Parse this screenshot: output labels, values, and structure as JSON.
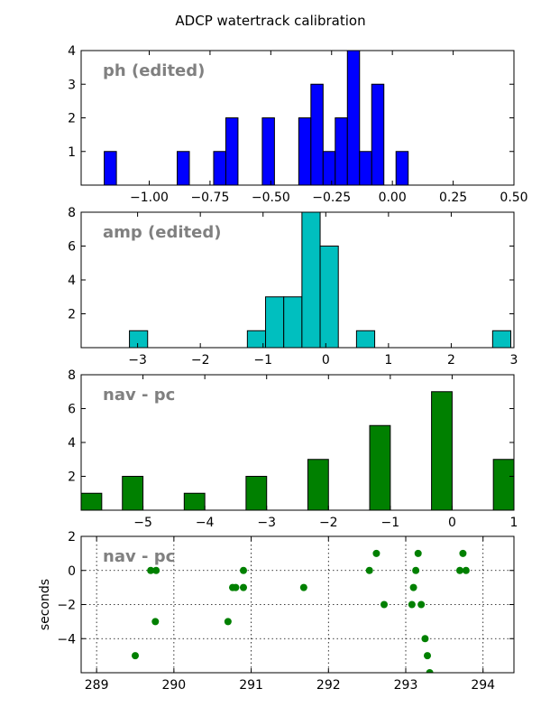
{
  "figure": {
    "title": "ADCP watertrack calibration"
  },
  "chart_data": [
    {
      "type": "bar",
      "panel_label": "ph (edited)",
      "color": "#0000ff",
      "xlim": [
        -1.28,
        0.5
      ],
      "ylim": [
        0,
        4
      ],
      "xticks": [
        "−1.00",
        "−0.75",
        "−0.50",
        "−0.25",
        "0.00",
        "0.25",
        "0.50"
      ],
      "xtick_values": [
        -1.0,
        -0.75,
        -0.5,
        -0.25,
        0.0,
        0.25,
        0.5
      ],
      "yticks": [
        "1",
        "2",
        "3",
        "4"
      ],
      "ytick_values": [
        1,
        2,
        3,
        4
      ],
      "bin_edges": [
        -1.28,
        -1.255,
        -1.23,
        -1.205,
        -1.18,
        -1.155,
        -1.13,
        -1.105,
        -1.08,
        -1.055
      ],
      "bins": [
        {
          "x0": -1.185,
          "x1": -1.135,
          "value": 1
        },
        {
          "x0": -0.885,
          "x1": -0.835,
          "value": 1
        },
        {
          "x0": -0.735,
          "x1": -0.685,
          "value": 1
        },
        {
          "x0": -0.685,
          "x1": -0.635,
          "value": 2
        },
        {
          "x0": -0.535,
          "x1": -0.485,
          "value": 2
        },
        {
          "x0": -0.385,
          "x1": -0.335,
          "value": 2
        },
        {
          "x0": -0.335,
          "x1": -0.285,
          "value": 3
        },
        {
          "x0": -0.285,
          "x1": -0.235,
          "value": 1
        },
        {
          "x0": -0.235,
          "x1": -0.185,
          "value": 2
        },
        {
          "x0": -0.185,
          "x1": -0.135,
          "value": 4
        },
        {
          "x0": -0.135,
          "x1": -0.085,
          "value": 1
        },
        {
          "x0": -0.085,
          "x1": -0.035,
          "value": 3
        },
        {
          "x0": 0.015,
          "x1": 0.065,
          "value": 1
        }
      ]
    },
    {
      "type": "bar",
      "panel_label": "amp (edited)",
      "color": "#00bfbf",
      "xlim": [
        -3.9,
        3.0
      ],
      "ylim": [
        0,
        8
      ],
      "xticks": [
        "−3",
        "−2",
        "−1",
        "0",
        "1",
        "2",
        "3"
      ],
      "xtick_values": [
        -3,
        -2,
        -1,
        0,
        1,
        2,
        3
      ],
      "yticks": [
        "2",
        "4",
        "6",
        "8"
      ],
      "ytick_values": [
        2,
        4,
        6,
        8
      ],
      "bins": [
        {
          "x0": -3.13,
          "x1": -2.84,
          "value": 1
        },
        {
          "x0": -1.25,
          "x1": -0.96,
          "value": 1
        },
        {
          "x0": -0.96,
          "x1": -0.67,
          "value": 3
        },
        {
          "x0": -0.67,
          "x1": -0.38,
          "value": 3
        },
        {
          "x0": -0.38,
          "x1": -0.09,
          "value": 8
        },
        {
          "x0": -0.09,
          "x1": 0.2,
          "value": 6
        },
        {
          "x0": 0.49,
          "x1": 0.78,
          "value": 1
        },
        {
          "x0": 2.66,
          "x1": 2.95,
          "value": 1
        }
      ]
    },
    {
      "type": "bar",
      "panel_label": "nav - pc",
      "color": "#008000",
      "xlim": [
        -6.0,
        1.0
      ],
      "ylim": [
        0,
        8
      ],
      "xticks": [
        "−5",
        "−4",
        "−3",
        "−2",
        "−1",
        "0",
        "1"
      ],
      "xtick_values": [
        -5,
        -4,
        -3,
        -2,
        -1,
        0,
        1
      ],
      "yticks": [
        "2",
        "4",
        "6",
        "8"
      ],
      "ytick_values": [
        2,
        4,
        6,
        8
      ],
      "bins": [
        {
          "x0": -6.0,
          "x1": -5.667,
          "value": 1
        },
        {
          "x0": -5.333,
          "x1": -5.0,
          "value": 2
        },
        {
          "x0": -4.333,
          "x1": -4.0,
          "value": 1
        },
        {
          "x0": -3.333,
          "x1": -3.0,
          "value": 2
        },
        {
          "x0": -2.333,
          "x1": -2.0,
          "value": 3
        },
        {
          "x0": -1.333,
          "x1": -1.0,
          "value": 5
        },
        {
          "x0": -0.333,
          "x1": 0.0,
          "value": 7
        },
        {
          "x0": 0.667,
          "x1": 1.0,
          "value": 3
        }
      ]
    },
    {
      "type": "scatter",
      "panel_label": "nav - pc",
      "color": "#008000",
      "ylabel": "seconds",
      "grid": true,
      "xlim": [
        288.8,
        294.4
      ],
      "ylim": [
        -6,
        2
      ],
      "xticks": [
        "289",
        "290",
        "291",
        "292",
        "293",
        "294"
      ],
      "xtick_values": [
        289,
        290,
        291,
        292,
        293,
        294
      ],
      "yticks": [
        "−4",
        "−2",
        "0",
        "2"
      ],
      "ytick_values": [
        -4,
        -2,
        0,
        2
      ],
      "points": [
        {
          "x": 289.5,
          "y": -5
        },
        {
          "x": 289.7,
          "y": 0
        },
        {
          "x": 289.77,
          "y": 0
        },
        {
          "x": 289.76,
          "y": -3
        },
        {
          "x": 290.7,
          "y": -3
        },
        {
          "x": 290.76,
          "y": -1
        },
        {
          "x": 290.8,
          "y": -1
        },
        {
          "x": 290.9,
          "y": -1
        },
        {
          "x": 290.9,
          "y": 0
        },
        {
          "x": 291.68,
          "y": -1
        },
        {
          "x": 292.53,
          "y": 0
        },
        {
          "x": 292.62,
          "y": 1
        },
        {
          "x": 292.72,
          "y": -2
        },
        {
          "x": 293.08,
          "y": -2
        },
        {
          "x": 293.1,
          "y": -1
        },
        {
          "x": 293.13,
          "y": 0
        },
        {
          "x": 293.16,
          "y": 1
        },
        {
          "x": 293.2,
          "y": -2
        },
        {
          "x": 293.25,
          "y": -4
        },
        {
          "x": 293.28,
          "y": -5
        },
        {
          "x": 293.31,
          "y": -6
        },
        {
          "x": 293.7,
          "y": 0
        },
        {
          "x": 293.74,
          "y": 1
        },
        {
          "x": 293.78,
          "y": 0
        }
      ]
    }
  ]
}
